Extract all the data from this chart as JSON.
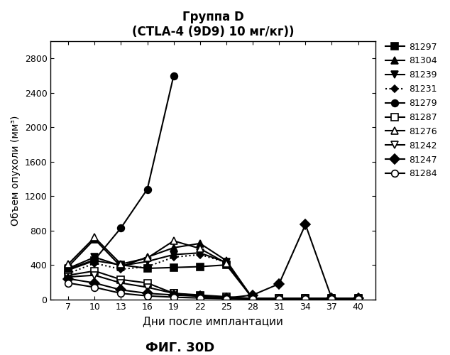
{
  "title_line1": "Группа D",
  "title_line2": "(CTLA-4 (9D9) 10 мг/кг))",
  "xlabel": "Дни после имплантации",
  "ylabel": "Объем опухоли (мм³)",
  "fig_label": "ФИГ. 30D",
  "x_ticks": [
    7,
    10,
    13,
    16,
    19,
    22,
    25,
    28,
    31,
    34,
    37,
    40
  ],
  "ylim": [
    0,
    3000
  ],
  "y_ticks": [
    0,
    400,
    800,
    1200,
    1600,
    2000,
    2400,
    2800
  ],
  "series": [
    {
      "label": "81297",
      "marker": "s",
      "fillstyle": "full",
      "linestyle": "-",
      "x": [
        7,
        10,
        13,
        16,
        19,
        22,
        25,
        28,
        31,
        34,
        37,
        40
      ],
      "y": [
        340,
        450,
        400,
        360,
        370,
        380,
        400,
        10,
        10,
        10,
        10,
        10
      ]
    },
    {
      "label": "81304",
      "marker": "^",
      "fillstyle": "full",
      "linestyle": "-",
      "x": [
        7,
        10,
        13,
        16,
        19,
        22,
        25,
        28,
        31,
        34,
        37,
        40
      ],
      "y": [
        380,
        700,
        380,
        490,
        600,
        650,
        450,
        10,
        10,
        10,
        10,
        10
      ]
    },
    {
      "label": "81239",
      "marker": "v",
      "fillstyle": "full",
      "linestyle": "-",
      "x": [
        7,
        10,
        13,
        16,
        19,
        22,
        25,
        28,
        31,
        34,
        37,
        40
      ],
      "y": [
        360,
        490,
        390,
        440,
        520,
        540,
        430,
        10,
        10,
        10,
        10,
        10
      ]
    },
    {
      "label": "81231",
      "marker": "D",
      "fillstyle": "full",
      "linestyle": ":",
      "markersize": 5,
      "x": [
        7,
        10,
        13,
        16,
        19,
        22,
        25,
        28,
        31,
        34,
        37,
        40
      ],
      "y": [
        300,
        420,
        350,
        380,
        490,
        520,
        430,
        10,
        10,
        10,
        10,
        10
      ]
    },
    {
      "label": "81279",
      "marker": "o",
      "fillstyle": "full",
      "linestyle": "-",
      "x": [
        7,
        10,
        13,
        16,
        19
      ],
      "y": [
        350,
        460,
        830,
        1280,
        2600
      ]
    },
    {
      "label": "81287",
      "marker": "s",
      "fillstyle": "none",
      "linestyle": "-",
      "x": [
        7,
        10,
        13,
        16,
        19,
        22,
        25,
        28,
        31,
        34,
        37,
        40
      ],
      "y": [
        280,
        330,
        230,
        190,
        70,
        50,
        30,
        10,
        5,
        5,
        5,
        5
      ]
    },
    {
      "label": "81276",
      "marker": "^",
      "fillstyle": "none",
      "linestyle": "-",
      "x": [
        7,
        10,
        13,
        16,
        19,
        22,
        25,
        28,
        31,
        34,
        37,
        40
      ],
      "y": [
        410,
        720,
        410,
        480,
        680,
        590,
        420,
        10,
        10,
        10,
        10,
        10
      ]
    },
    {
      "label": "81242",
      "marker": "v",
      "fillstyle": "none",
      "linestyle": "-",
      "x": [
        7,
        10,
        13,
        16,
        19,
        22,
        25,
        28,
        31,
        34,
        37,
        40
      ],
      "y": [
        260,
        280,
        190,
        140,
        70,
        40,
        15,
        5,
        5,
        5,
        5,
        5
      ]
    },
    {
      "label": "81247",
      "marker": "D",
      "fillstyle": "full",
      "linestyle": "-",
      "x": [
        7,
        10,
        13,
        16,
        19,
        22,
        25,
        28,
        31,
        34,
        37,
        40
      ],
      "y": [
        240,
        190,
        110,
        70,
        50,
        35,
        15,
        50,
        180,
        870,
        10,
        10
      ]
    },
    {
      "label": "81284",
      "marker": "o",
      "fillstyle": "none",
      "linestyle": "-",
      "x": [
        7,
        10,
        13,
        16,
        19,
        22,
        25,
        28,
        31,
        34,
        37,
        40
      ],
      "y": [
        190,
        140,
        70,
        40,
        25,
        15,
        8,
        5,
        5,
        5,
        5,
        5
      ]
    }
  ]
}
